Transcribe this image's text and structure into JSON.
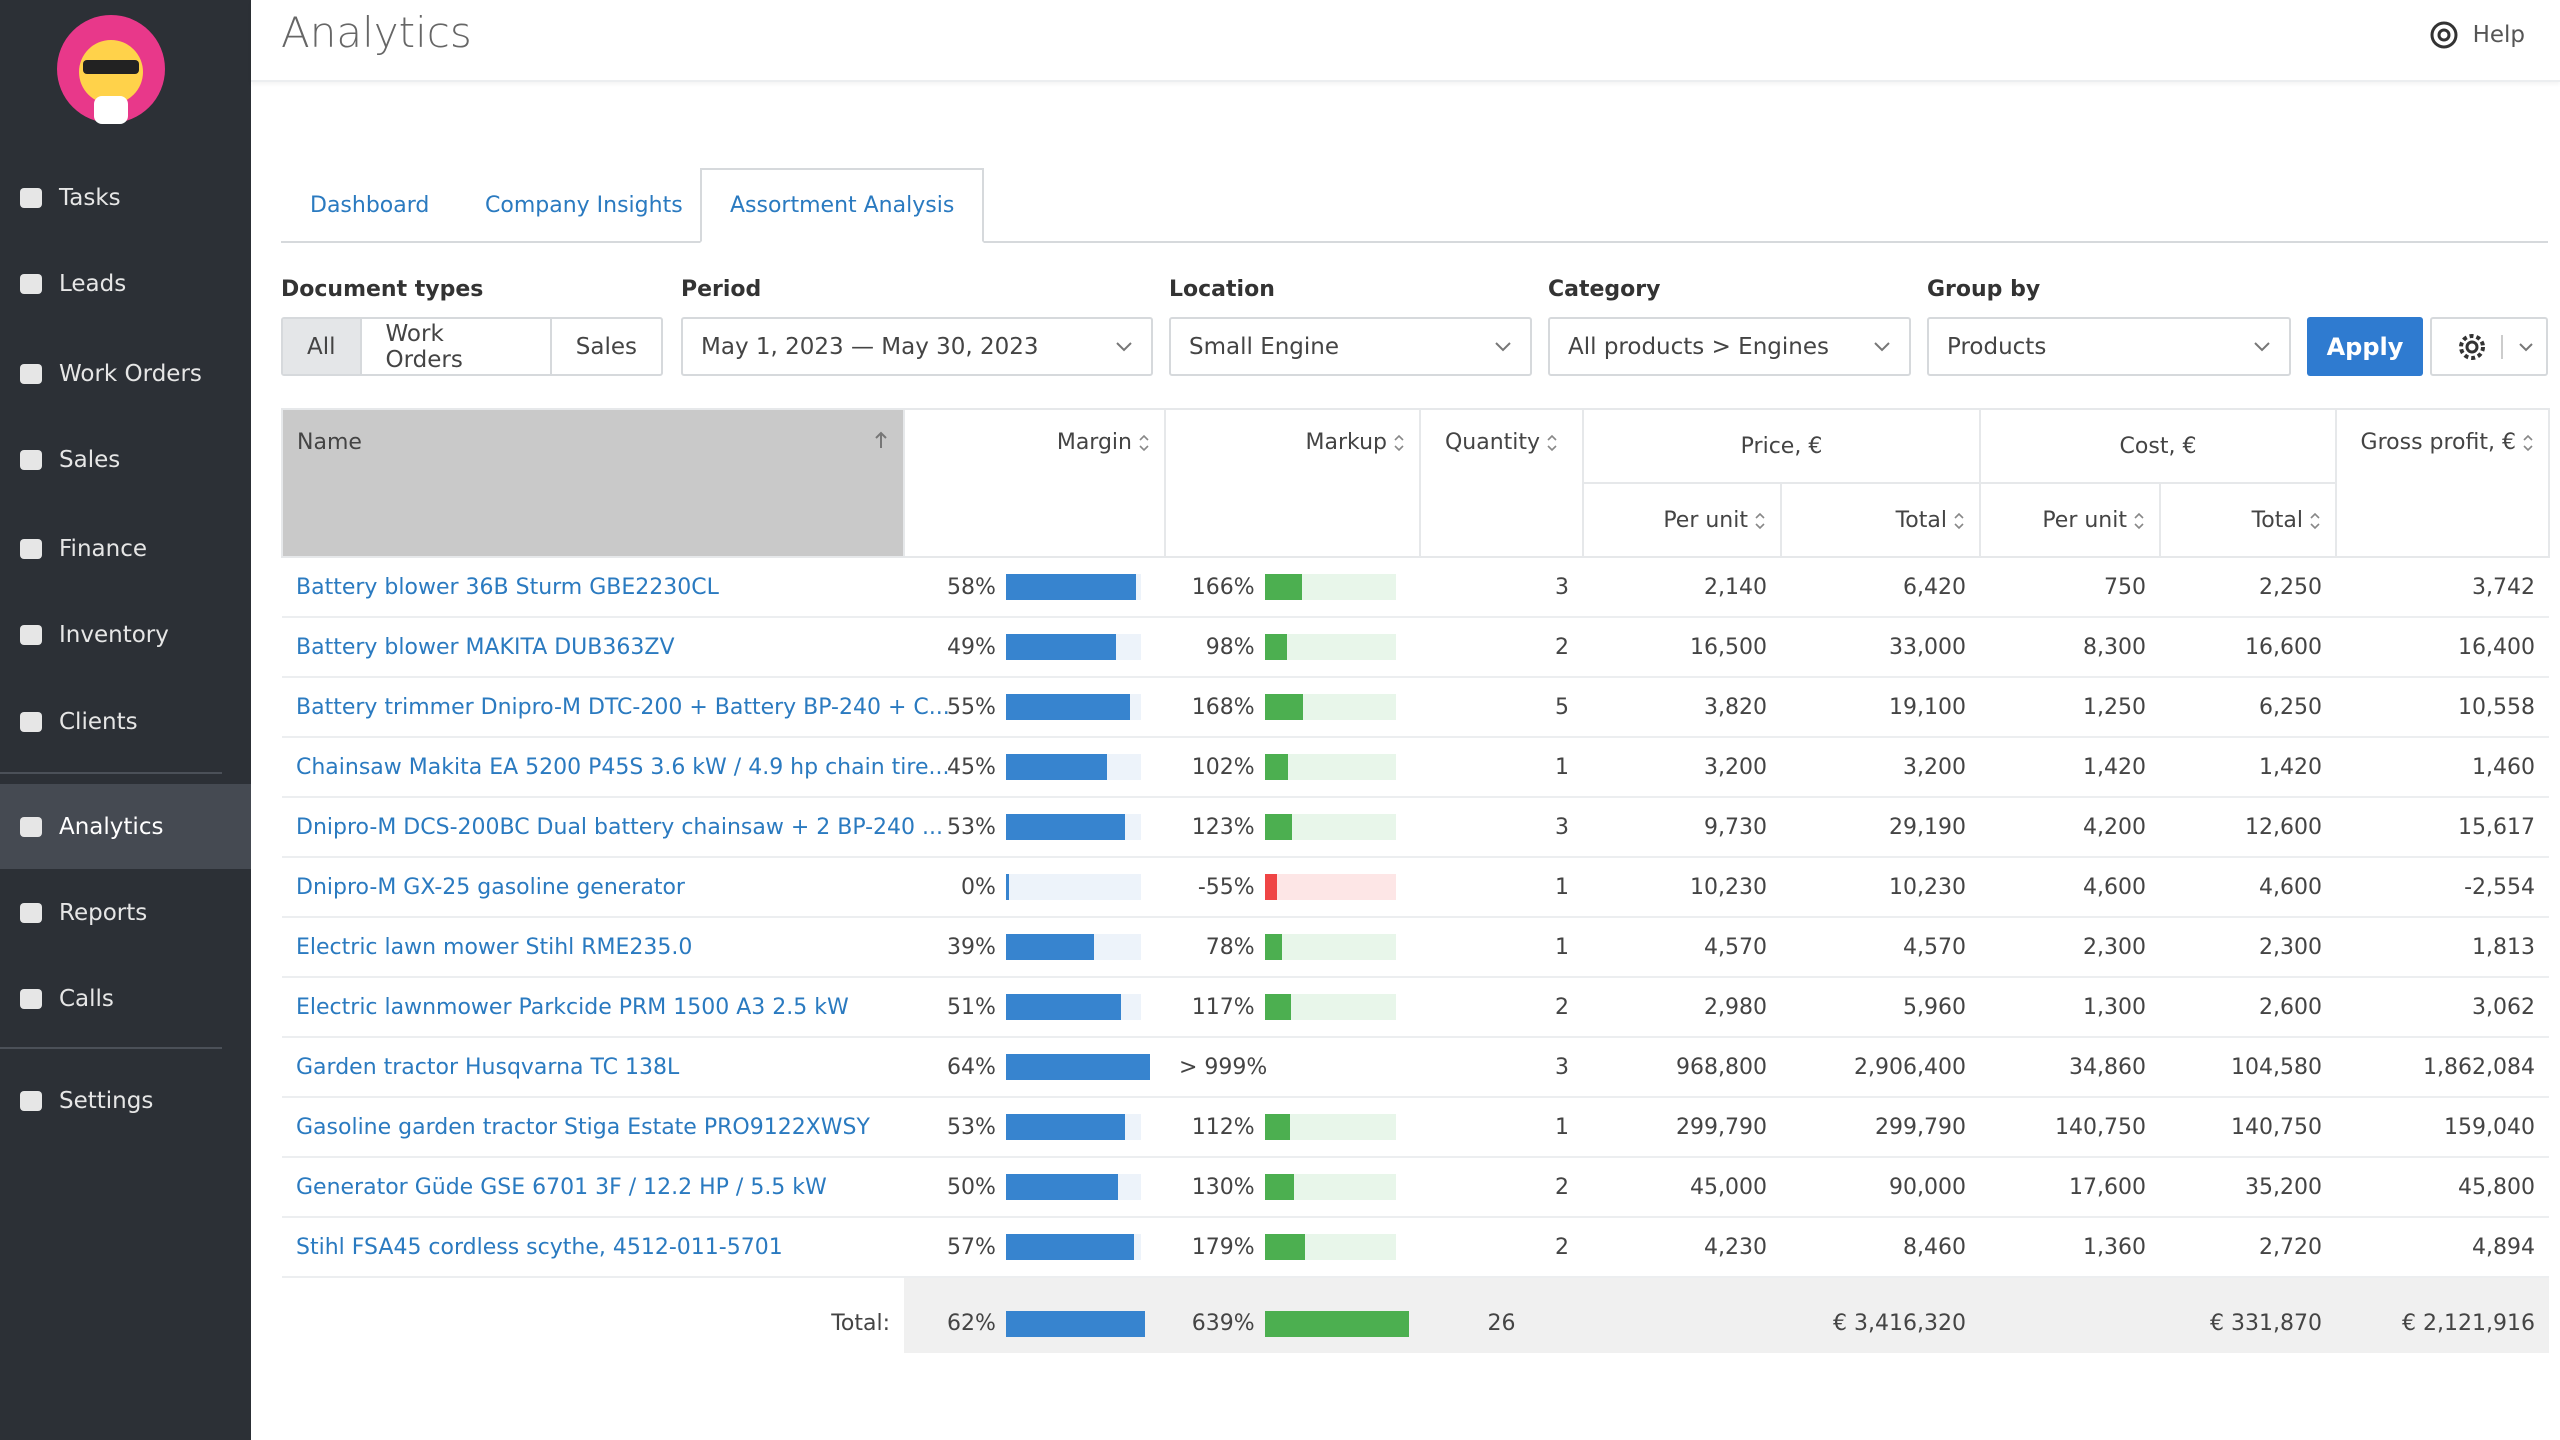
{
  "sidebar": {
    "items": [
      "Tasks",
      "Leads",
      "Work Orders",
      "Sales",
      "Finance",
      "Inventory",
      "Clients",
      "Analytics",
      "Reports",
      "Calls",
      "Settings"
    ],
    "active": "Analytics"
  },
  "header": {
    "title": "Analytics",
    "help": "Help"
  },
  "tabs": {
    "items": [
      "Dashboard",
      "Company Insights",
      "Assortment Analysis"
    ],
    "active": "Assortment Analysis"
  },
  "filters": {
    "document_types": {
      "label": "Document types",
      "options": [
        "All",
        "Work Orders",
        "Sales"
      ],
      "active": "All"
    },
    "period": {
      "label": "Period",
      "value": "May 1, 2023 — May 30, 2023"
    },
    "location": {
      "label": "Location",
      "value": "Small Engine"
    },
    "category": {
      "label": "Category",
      "value": "All products > Engines"
    },
    "group_by": {
      "label": "Group by",
      "value": "Products"
    },
    "apply": "Apply"
  },
  "table": {
    "headers": {
      "name": "Name",
      "margin": "Margin",
      "markup": "Markup",
      "quantity": "Quantity",
      "price": "Price, €",
      "cost": "Cost, €",
      "gross_profit": "Gross profit, €",
      "per_unit": "Per unit",
      "total": "Total"
    },
    "rows": [
      {
        "name": "Battery blower 36B Sturm GBE2230CL",
        "margin": {
          "value": 58,
          "label": "58%"
        },
        "markup": {
          "value": 166,
          "label": "166%"
        },
        "quantity": 3,
        "price_per_unit": "2,140",
        "price_total": "6,420",
        "cost_per_unit": "750",
        "cost_total": "2,250",
        "gross_profit": "3,742"
      },
      {
        "name": "Battery blower MAKITA DUB363ZV",
        "margin": {
          "value": 49,
          "label": "49%"
        },
        "markup": {
          "value": 98,
          "label": "98%"
        },
        "quantity": 2,
        "price_per_unit": "16,500",
        "price_total": "33,000",
        "cost_per_unit": "8,300",
        "cost_total": "16,600",
        "gross_profit": "16,400"
      },
      {
        "name": "Battery trimmer Dnipro-M DTC-200 + Battery BP-240 + C...",
        "margin": {
          "value": 55,
          "label": "55%"
        },
        "markup": {
          "value": 168,
          "label": "168%"
        },
        "quantity": 5,
        "price_per_unit": "3,820",
        "price_total": "19,100",
        "cost_per_unit": "1,250",
        "cost_total": "6,250",
        "gross_profit": "10,558"
      },
      {
        "name": "Chainsaw Makita EA 5200 P45S 3.6 kW / 4.9 hp chain tire...",
        "margin": {
          "value": 45,
          "label": "45%"
        },
        "markup": {
          "value": 102,
          "label": "102%"
        },
        "quantity": 1,
        "price_per_unit": "3,200",
        "price_total": "3,200",
        "cost_per_unit": "1,420",
        "cost_total": "1,420",
        "gross_profit": "1,460"
      },
      {
        "name": "Dnipro-M DCS-200BC Dual battery chainsaw + 2 BP-240 ...",
        "margin": {
          "value": 53,
          "label": "53%"
        },
        "markup": {
          "value": 123,
          "label": "123%"
        },
        "quantity": 3,
        "price_per_unit": "9,730",
        "price_total": "29,190",
        "cost_per_unit": "4,200",
        "cost_total": "12,600",
        "gross_profit": "15,617"
      },
      {
        "name": "Dnipro-M GX-25 gasoline generator",
        "margin": {
          "value": 0,
          "label": "0%"
        },
        "markup": {
          "value": -55,
          "label": "-55%"
        },
        "quantity": 1,
        "price_per_unit": "10,230",
        "price_total": "10,230",
        "cost_per_unit": "4,600",
        "cost_total": "4,600",
        "gross_profit": "-2,554"
      },
      {
        "name": "Electric lawn mower Stihl RME235.0",
        "margin": {
          "value": 39,
          "label": "39%"
        },
        "markup": {
          "value": 78,
          "label": "78%"
        },
        "quantity": 1,
        "price_per_unit": "4,570",
        "price_total": "4,570",
        "cost_per_unit": "2,300",
        "cost_total": "2,300",
        "gross_profit": "1,813"
      },
      {
        "name": "Electric lawnmower Parkcide PRM 1500 A3 2.5 kW",
        "margin": {
          "value": 51,
          "label": "51%"
        },
        "markup": {
          "value": 117,
          "label": "117%"
        },
        "quantity": 2,
        "price_per_unit": "2,980",
        "price_total": "5,960",
        "cost_per_unit": "1,300",
        "cost_total": "2,600",
        "gross_profit": "3,062"
      },
      {
        "name": "Garden tractor Husqvarna TC 138L",
        "margin": {
          "value": 64,
          "label": "64%"
        },
        "markup": {
          "value": null,
          "label": "> 999%"
        },
        "quantity": 3,
        "price_per_unit": "968,800",
        "price_total": "2,906,400",
        "cost_per_unit": "34,860",
        "cost_total": "104,580",
        "gross_profit": "1,862,084"
      },
      {
        "name": "Gasoline garden tractor Stiga Estate PRO9122XWSY",
        "margin": {
          "value": 53,
          "label": "53%"
        },
        "markup": {
          "value": 112,
          "label": "112%"
        },
        "quantity": 1,
        "price_per_unit": "299,790",
        "price_total": "299,790",
        "cost_per_unit": "140,750",
        "cost_total": "140,750",
        "gross_profit": "159,040"
      },
      {
        "name": "Generator Güde GSE 6701 3F / 12.2 HP / 5.5 kW",
        "margin": {
          "value": 50,
          "label": "50%"
        },
        "markup": {
          "value": 130,
          "label": "130%"
        },
        "quantity": 2,
        "price_per_unit": "45,000",
        "price_total": "90,000",
        "cost_per_unit": "17,600",
        "cost_total": "35,200",
        "gross_profit": "45,800"
      },
      {
        "name": "Stihl FSA45 cordless scythe, 4512-011-5701",
        "margin": {
          "value": 57,
          "label": "57%"
        },
        "markup": {
          "value": 179,
          "label": "179%"
        },
        "quantity": 2,
        "price_per_unit": "4,230",
        "price_total": "8,460",
        "cost_per_unit": "1,360",
        "cost_total": "2,720",
        "gross_profit": "4,894"
      }
    ],
    "total": {
      "label": "Total:",
      "margin": {
        "value": 62,
        "label": "62%"
      },
      "markup": {
        "value": 639,
        "label": "639%"
      },
      "quantity": 26,
      "price_total": "€ 3,416,320",
      "cost_total": "€ 331,870",
      "gross_profit": "€ 2,121,916"
    }
  }
}
